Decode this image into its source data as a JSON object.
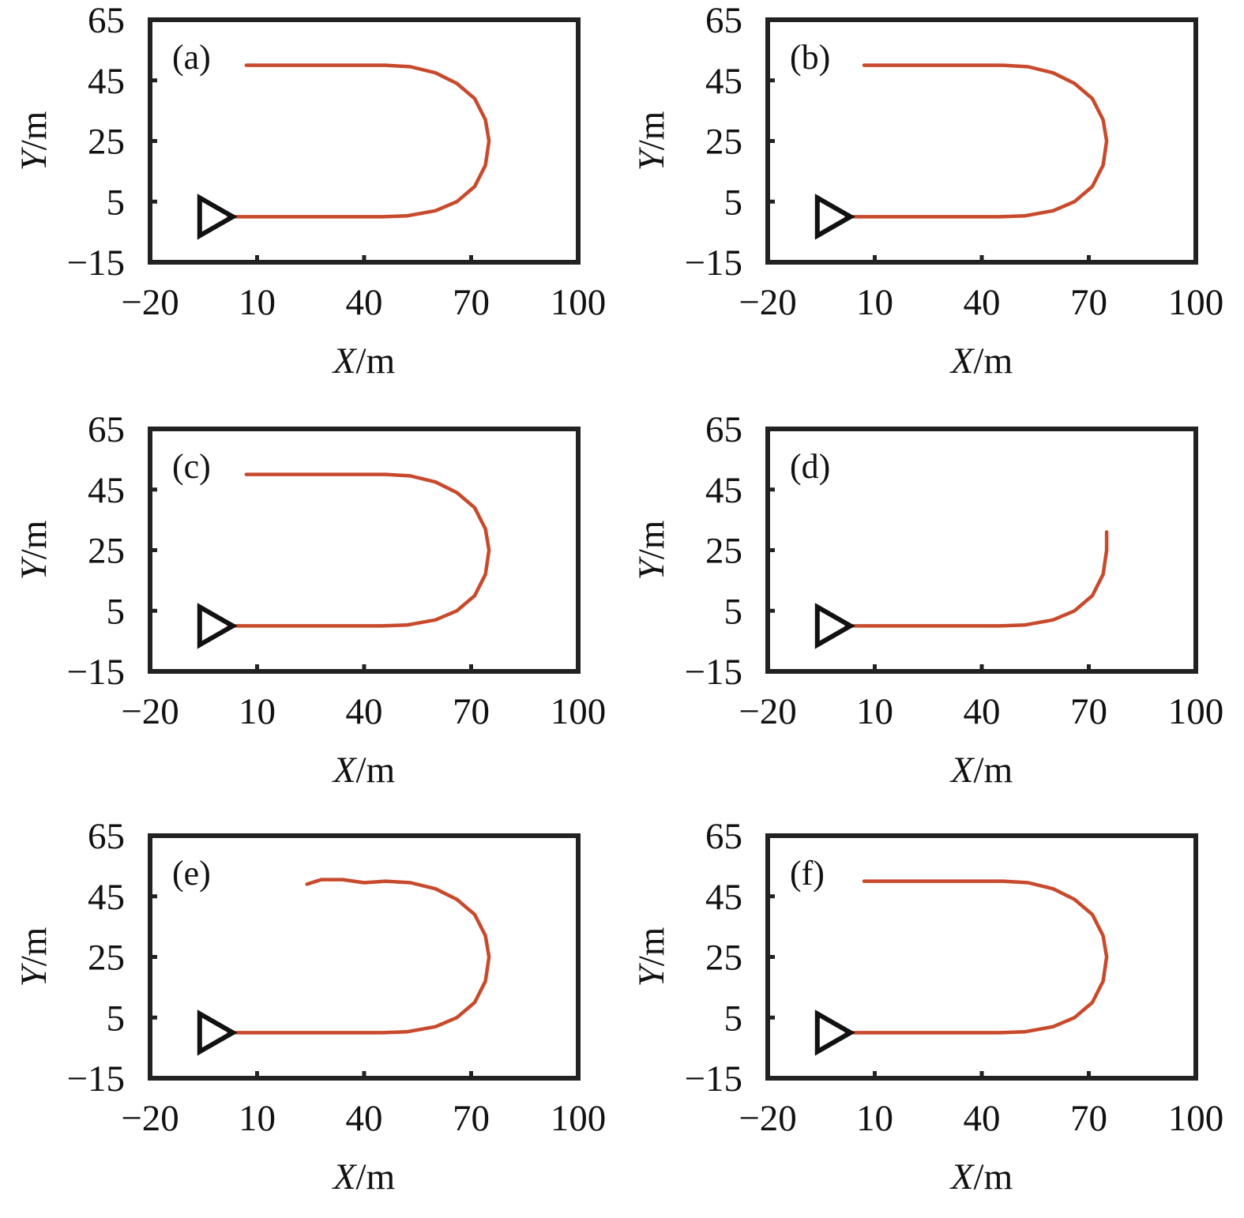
{
  "colors": {
    "path": "#c84a2c",
    "frame": "#222222",
    "marker": "#111111"
  },
  "chart_data": [
    {
      "panel": "(a)",
      "type": "line",
      "xlabel": "X/m",
      "ylabel": "Y/m",
      "xlim": [
        -20,
        100
      ],
      "ylim": [
        -15,
        65
      ],
      "xticks": [
        "−20",
        "10",
        "40",
        "70",
        "100"
      ],
      "yticks": [
        "65",
        "45",
        "25",
        "5",
        "−15"
      ],
      "marker": {
        "shape": "triangle",
        "x": -3,
        "y": 0
      },
      "series": [
        {
          "x": [
            2,
            20,
            45,
            52,
            60,
            66,
            71,
            74,
            75,
            74,
            71,
            66,
            60,
            53,
            46,
            35,
            20,
            7
          ],
          "y": [
            0,
            0,
            0,
            0.3,
            2,
            5,
            10,
            17,
            25,
            32,
            39,
            44,
            47.5,
            49.5,
            50,
            50,
            50,
            50
          ]
        }
      ]
    },
    {
      "panel": "(b)",
      "type": "line",
      "xlabel": "X/m",
      "ylabel": "Y/m",
      "xlim": [
        -20,
        100
      ],
      "ylim": [
        -15,
        65
      ],
      "xticks": [
        "−20",
        "10",
        "40",
        "70",
        "100"
      ],
      "yticks": [
        "65",
        "45",
        "25",
        "5",
        "−15"
      ],
      "marker": {
        "shape": "triangle",
        "x": -3,
        "y": 0
      },
      "series": [
        {
          "x": [
            2,
            20,
            45,
            52,
            60,
            66,
            71,
            74,
            75,
            74,
            71,
            66,
            60,
            53,
            46,
            35,
            20,
            7
          ],
          "y": [
            0,
            0,
            0,
            0.3,
            2,
            5,
            10,
            17,
            25,
            32,
            39,
            44,
            47.5,
            49.5,
            50,
            50,
            50,
            50
          ]
        }
      ]
    },
    {
      "panel": "(c)",
      "type": "line",
      "xlabel": "X/m",
      "ylabel": "Y/m",
      "xlim": [
        -20,
        100
      ],
      "ylim": [
        -15,
        65
      ],
      "xticks": [
        "−20",
        "10",
        "40",
        "70",
        "100"
      ],
      "yticks": [
        "65",
        "45",
        "25",
        "5",
        "−15"
      ],
      "marker": {
        "shape": "triangle",
        "x": -3,
        "y": 0
      },
      "series": [
        {
          "x": [
            2,
            20,
            45,
            52,
            60,
            66,
            71,
            74,
            75,
            74,
            71,
            66,
            60,
            53,
            46,
            35,
            20,
            7
          ],
          "y": [
            0,
            0,
            0,
            0.3,
            2,
            5,
            10,
            17,
            25,
            32,
            39,
            44,
            47.5,
            49.5,
            50,
            50,
            50,
            50
          ]
        }
      ]
    },
    {
      "panel": "(d)",
      "type": "line",
      "xlabel": "X/m",
      "ylabel": "Y/m",
      "xlim": [
        -20,
        100
      ],
      "ylim": [
        -15,
        65
      ],
      "xticks": [
        "−20",
        "10",
        "40",
        "70",
        "100"
      ],
      "yticks": [
        "65",
        "45",
        "25",
        "5",
        "−15"
      ],
      "marker": {
        "shape": "triangle",
        "x": -3,
        "y": 0
      },
      "series": [
        {
          "x": [
            2,
            20,
            45,
            52,
            60,
            66,
            71,
            74,
            75,
            75
          ],
          "y": [
            0,
            0,
            0,
            0.3,
            2,
            5,
            10,
            17,
            25,
            31
          ]
        }
      ]
    },
    {
      "panel": "(e)",
      "type": "line",
      "xlabel": "X/m",
      "ylabel": "Y/m",
      "xlim": [
        -20,
        100
      ],
      "ylim": [
        -15,
        65
      ],
      "xticks": [
        "−20",
        "10",
        "40",
        "70",
        "100"
      ],
      "yticks": [
        "65",
        "45",
        "25",
        "5",
        "−15"
      ],
      "marker": {
        "shape": "triangle",
        "x": -3,
        "y": 0
      },
      "series": [
        {
          "x": [
            2,
            20,
            45,
            52,
            60,
            66,
            71,
            74,
            75,
            74,
            71,
            66,
            60,
            53,
            46,
            40,
            34,
            28,
            24
          ],
          "y": [
            0,
            0,
            0,
            0.3,
            2,
            5,
            10,
            17,
            25,
            32,
            39,
            44,
            47.5,
            49.5,
            50,
            49.5,
            50.5,
            50.5,
            49
          ]
        }
      ]
    },
    {
      "panel": "(f)",
      "type": "line",
      "xlabel": "X/m",
      "ylabel": "Y/m",
      "xlim": [
        -20,
        100
      ],
      "ylim": [
        -15,
        65
      ],
      "xticks": [
        "−20",
        "10",
        "40",
        "70",
        "100"
      ],
      "yticks": [
        "65",
        "45",
        "25",
        "5",
        "−15"
      ],
      "marker": {
        "shape": "triangle",
        "x": -3,
        "y": 0
      },
      "series": [
        {
          "x": [
            2,
            20,
            45,
            52,
            60,
            66,
            71,
            74,
            75,
            74,
            71,
            66,
            60,
            53,
            46,
            35,
            20,
            7
          ],
          "y": [
            0,
            0,
            0,
            0.3,
            2,
            5,
            10,
            17,
            25,
            32,
            39,
            44,
            47.5,
            49.5,
            50,
            50,
            50,
            50
          ]
        }
      ]
    }
  ]
}
